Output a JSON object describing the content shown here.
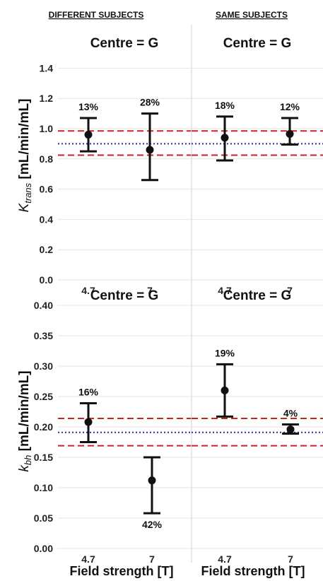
{
  "header": {
    "left": "DIFFERENT SUBJECTS",
    "right": "SAME SUBJECTS"
  },
  "axes_text": {
    "x_label": "Field strength [T]",
    "y_top_symbol": "K",
    "y_top_sub": "trans",
    "y_top_unit": " [mL/min/mL]",
    "y_bottom_symbol": "k",
    "y_bottom_sub": "bh",
    "y_bottom_unit": " [mL/min/mL]"
  },
  "colors": {
    "mark": "#111111",
    "limit_line": "#cc2222",
    "mean_line": "#2a2aa8",
    "grid": "#e6e6e6",
    "panel_border": "#d2d2d2"
  },
  "chart_data": [
    {
      "type": "scatter",
      "title": "Centre = G",
      "column": "DIFFERENT SUBJECTS",
      "categories": [
        "4.7",
        "7"
      ],
      "ylim": [
        0,
        1.5
      ],
      "yticks": [
        "0.0",
        "0.2",
        "0.4",
        "0.6",
        "0.8",
        "1.0",
        "1.2",
        "1.4"
      ],
      "ytick_values": [
        0,
        0.2,
        0.4,
        0.6,
        0.8,
        1.0,
        1.2,
        1.4
      ],
      "points": [
        {
          "x": "4.7",
          "y": 0.96,
          "lower": 0.85,
          "upper": 1.07,
          "label": "13%",
          "label_pos": "above"
        },
        {
          "x": "7",
          "y": 0.86,
          "lower": 0.66,
          "upper": 1.1,
          "label": "28%",
          "label_pos": "above"
        }
      ],
      "hlines": {
        "mean": 0.9,
        "lower_limit": 0.825,
        "upper_limit": 0.985
      },
      "grid": true
    },
    {
      "type": "scatter",
      "title": "Centre = G",
      "column": "SAME SUBJECTS",
      "categories": [
        "4.7",
        "7"
      ],
      "ylim": [
        0,
        1.5
      ],
      "yticks": [],
      "ytick_values": [
        0,
        0.2,
        0.4,
        0.6,
        0.8,
        1.0,
        1.2,
        1.4
      ],
      "points": [
        {
          "x": "4.7",
          "y": 0.94,
          "lower": 0.79,
          "upper": 1.08,
          "label": "18%",
          "label_pos": "above"
        },
        {
          "x": "7",
          "y": 0.965,
          "lower": 0.895,
          "upper": 1.07,
          "label": "12%",
          "label_pos": "above"
        }
      ],
      "hlines": {
        "mean": 0.9,
        "lower_limit": 0.825,
        "upper_limit": 0.985
      },
      "grid": true
    },
    {
      "type": "scatter",
      "title": "Centre = G",
      "column": "DIFFERENT SUBJECTS",
      "categories": [
        "4.7",
        "7"
      ],
      "ylim": [
        0,
        0.4
      ],
      "yticks": [
        "0.00",
        "0.05",
        "0.10",
        "0.15",
        "0.20",
        "0.25",
        "0.30",
        "0.35",
        "0.40"
      ],
      "ytick_values": [
        0,
        0.05,
        0.1,
        0.15,
        0.2,
        0.25,
        0.3,
        0.35,
        0.4
      ],
      "points": [
        {
          "x": "4.7",
          "y": 0.208,
          "lower": 0.175,
          "upper": 0.239,
          "label": "16%",
          "label_pos": "above"
        },
        {
          "x": "7",
          "y": 0.112,
          "lower": 0.058,
          "upper": 0.15,
          "label": "42%",
          "label_pos": "below"
        }
      ],
      "hlines": {
        "mean": 0.191,
        "lower_limit": 0.169,
        "upper_limit": 0.214
      },
      "grid": true
    },
    {
      "type": "scatter",
      "title": "Centre = G",
      "column": "SAME SUBJECTS",
      "categories": [
        "4.7",
        "7"
      ],
      "ylim": [
        0,
        0.4
      ],
      "yticks": [],
      "ytick_values": [
        0,
        0.05,
        0.1,
        0.15,
        0.2,
        0.25,
        0.3,
        0.35,
        0.4
      ],
      "points": [
        {
          "x": "4.7",
          "y": 0.26,
          "lower": 0.217,
          "upper": 0.303,
          "label": "19%",
          "label_pos": "above"
        },
        {
          "x": "7",
          "y": 0.196,
          "lower": 0.189,
          "upper": 0.204,
          "label": "4%",
          "label_pos": "above"
        }
      ],
      "hlines": {
        "mean": 0.191,
        "lower_limit": 0.169,
        "upper_limit": 0.214
      },
      "grid": true
    }
  ]
}
